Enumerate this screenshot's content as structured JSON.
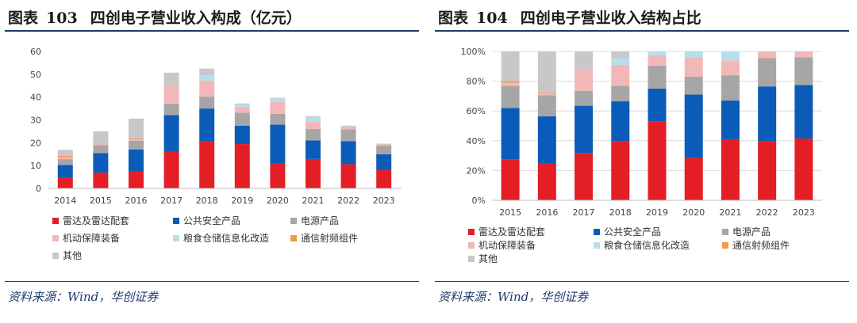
{
  "left_panel": {
    "figure_label": "图表",
    "figure_number": "103",
    "title": "四创电子营业收入构成（亿元）",
    "source": "资料来源：Wind，华创证券"
  },
  "right_panel": {
    "figure_label": "图表",
    "figure_number": "104",
    "title": "四创电子营业收入结构占比",
    "source": "资料来源：Wind，华创证券"
  },
  "colors": {
    "雷达及雷达配套": "#e41e25",
    "公共安全产品": "#0a5cb8",
    "电源产品": "#a6a6a6",
    "机动保障装备": "#f2b8b8",
    "粮食仓储信息化改造": "#b6dfec",
    "通信射频组件": "#f39a45",
    "其他": "#c8c8c8",
    "title_rule": "#1f3a6d"
  },
  "chart_data": [
    {
      "type": "bar",
      "stacked": true,
      "categories": [
        "2014",
        "2015",
        "2016",
        "2017",
        "2018",
        "2019",
        "2020",
        "2021",
        "2022",
        "2023"
      ],
      "ylim": [
        0,
        60
      ],
      "yticks": [
        0,
        10,
        20,
        30,
        40,
        50,
        60
      ],
      "ytick_labels": [
        "0",
        "10",
        "20",
        "30",
        "40",
        "50",
        "60"
      ],
      "grid": false,
      "legend_position": "bottom",
      "series": [
        {
          "name": "雷达及雷达配套",
          "values": [
            4.7,
            6.9,
            7.3,
            16.3,
            20.8,
            19.4,
            11.1,
            12.9,
            10.6,
            8.0
          ]
        },
        {
          "name": "公共安全产品",
          "values": [
            5.6,
            8.6,
            9.8,
            15.8,
            14.2,
            8.1,
            16.8,
            8.1,
            10.1,
            7.0
          ]
        },
        {
          "name": "电源产品",
          "values": [
            2.5,
            3.5,
            3.8,
            5.1,
            5.2,
            5.7,
            4.8,
            5.1,
            5.2,
            3.7
          ]
        },
        {
          "name": "机动保障装备",
          "values": [
            0.9,
            0.5,
            0.6,
            7.5,
            7.1,
            2.6,
            5.2,
            3.0,
            1.2,
            0.7
          ]
        },
        {
          "name": "粮食仓储信息化改造",
          "values": [
            0.0,
            0.0,
            0.0,
            0.0,
            2.3,
            1.0,
            1.4,
            1.9,
            0.0,
            0.0
          ]
        },
        {
          "name": "通信射频组件",
          "values": [
            0.6,
            0.2,
            0.3,
            0.0,
            0.0,
            0.0,
            0.0,
            0.0,
            0.0,
            0.0
          ]
        },
        {
          "name": "其他",
          "values": [
            2.6,
            5.3,
            8.8,
            6.0,
            2.9,
            0.4,
            0.4,
            0.6,
            0.4,
            0.2
          ]
        }
      ]
    },
    {
      "type": "bar",
      "stacked": true,
      "categories": [
        "2015",
        "2016",
        "2017",
        "2018",
        "2019",
        "2020",
        "2021",
        "2022",
        "2023"
      ],
      "ylim": [
        0,
        100
      ],
      "yticks": [
        0,
        20,
        40,
        60,
        80,
        100
      ],
      "ytick_labels": [
        "0%",
        "20%",
        "40%",
        "60%",
        "80%",
        "100%"
      ],
      "grid": true,
      "legend_position": "bottom",
      "series": [
        {
          "name": "雷达及雷达配套",
          "values": [
            27.5,
            25.0,
            31.5,
            39.5,
            53.0,
            28.5,
            41.0,
            39.5,
            41.5
          ]
        },
        {
          "name": "公共安全产品",
          "values": [
            34.5,
            31.5,
            32.0,
            27.0,
            22.0,
            42.5,
            26.0,
            37.0,
            36.0
          ]
        },
        {
          "name": "电源产品",
          "values": [
            15.0,
            14.0,
            10.0,
            10.5,
            15.5,
            12.0,
            17.0,
            19.0,
            18.5
          ]
        },
        {
          "name": "机动保障装备",
          "values": [
            2.0,
            1.5,
            14.5,
            14.0,
            7.0,
            13.0,
            10.0,
            4.5,
            4.0
          ]
        },
        {
          "name": "粮食仓储信息化改造",
          "values": [
            0.0,
            0.0,
            0.0,
            4.5,
            2.5,
            3.5,
            6.0,
            0.0,
            0.0
          ]
        },
        {
          "name": "通信射频组件",
          "values": [
            1.0,
            0.5,
            0.0,
            0.0,
            0.0,
            0.0,
            0.0,
            0.0,
            0.0
          ]
        },
        {
          "name": "其他",
          "values": [
            20.0,
            27.5,
            12.0,
            4.5,
            0.0,
            0.5,
            0.0,
            0.0,
            0.0
          ]
        }
      ]
    }
  ]
}
